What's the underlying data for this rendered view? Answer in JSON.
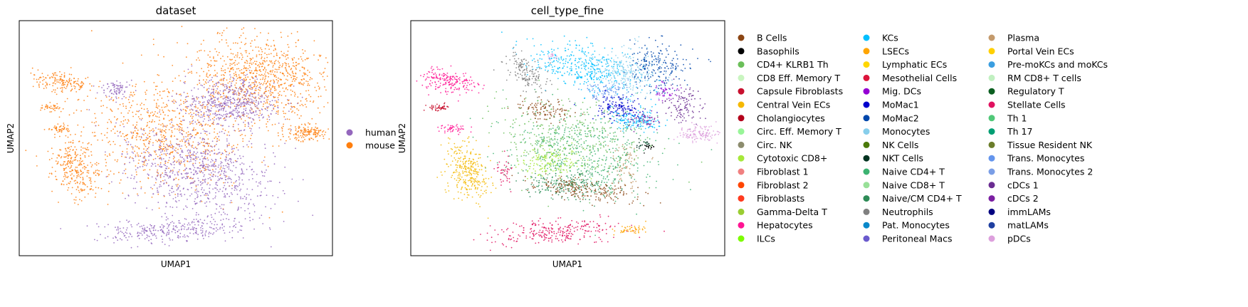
{
  "chart_data": [
    {
      "type": "scatter",
      "title": "dataset",
      "xlabel": "UMAP1",
      "ylabel": "UMAP2",
      "grid": false,
      "legend_position": "right",
      "series": [
        {
          "name": "human",
          "color": "#9467bd"
        },
        {
          "name": "mouse",
          "color": "#ff7f0e"
        }
      ],
      "clusters": [
        {
          "series": "mouse",
          "cx": 0.78,
          "cy": 0.76,
          "rx": 0.22,
          "ry": 0.17,
          "rot": -20,
          "n": 850
        },
        {
          "series": "mouse",
          "cx": 0.48,
          "cy": 0.52,
          "rx": 0.26,
          "ry": 0.22,
          "rot": -25,
          "n": 800
        },
        {
          "series": "mouse",
          "cx": 0.14,
          "cy": 0.74,
          "rx": 0.09,
          "ry": 0.045,
          "rot": -10,
          "n": 160
        },
        {
          "series": "mouse",
          "cx": 0.1,
          "cy": 0.63,
          "rx": 0.04,
          "ry": 0.015,
          "rot": 0,
          "n": 40
        },
        {
          "series": "mouse",
          "cx": 0.13,
          "cy": 0.54,
          "rx": 0.04,
          "ry": 0.02,
          "rot": 0,
          "n": 45
        },
        {
          "series": "mouse",
          "cx": 0.18,
          "cy": 0.38,
          "rx": 0.08,
          "ry": 0.14,
          "rot": 10,
          "n": 300
        },
        {
          "series": "mouse",
          "cx": 0.92,
          "cy": 0.52,
          "rx": 0.07,
          "ry": 0.035,
          "rot": 0,
          "n": 150
        },
        {
          "series": "human",
          "cx": 0.67,
          "cy": 0.65,
          "rx": 0.16,
          "ry": 0.1,
          "rot": -5,
          "n": 550
        },
        {
          "series": "human",
          "cx": 0.57,
          "cy": 0.36,
          "rx": 0.25,
          "ry": 0.17,
          "rot": -25,
          "n": 800
        },
        {
          "series": "human",
          "cx": 0.48,
          "cy": 0.11,
          "rx": 0.24,
          "ry": 0.05,
          "rot": 5,
          "n": 300
        },
        {
          "series": "human",
          "cx": 0.31,
          "cy": 0.71,
          "rx": 0.05,
          "ry": 0.035,
          "rot": 0,
          "n": 80
        }
      ]
    },
    {
      "type": "scatter",
      "title": "cell_type_fine",
      "xlabel": "UMAP1",
      "ylabel": "UMAP2",
      "grid": false,
      "legend_position": "right",
      "series": [
        {
          "name": "B Cells",
          "color": "#8b4513"
        },
        {
          "name": "Basophils",
          "color": "#000000"
        },
        {
          "name": "CD4+ KLRB1 Th",
          "color": "#6bbf59"
        },
        {
          "name": "CD8 Eff. Memory T",
          "color": "#c9f5c0"
        },
        {
          "name": "Capsule Fibroblasts",
          "color": "#c8102e"
        },
        {
          "name": "Central Vein ECs",
          "color": "#f5b800"
        },
        {
          "name": "Cholangiocytes",
          "color": "#b3001b"
        },
        {
          "name": "Circ. Eff. Memory T",
          "color": "#98f598"
        },
        {
          "name": "Circ. NK",
          "color": "#8c8c6e"
        },
        {
          "name": "Cytotoxic CD8+",
          "color": "#a6e83a"
        },
        {
          "name": "Fibroblast 1",
          "color": "#f08080"
        },
        {
          "name": "Fibroblast 2",
          "color": "#ff4500"
        },
        {
          "name": "Fibroblasts",
          "color": "#ff3b1f"
        },
        {
          "name": "Gamma-Delta T",
          "color": "#9acd32"
        },
        {
          "name": "Hepatocytes",
          "color": "#ff1493"
        },
        {
          "name": "ILCs",
          "color": "#7cfc00"
        },
        {
          "name": "KCs",
          "color": "#00bfff"
        },
        {
          "name": "LSECs",
          "color": "#ffa500"
        },
        {
          "name": "Lymphatic ECs",
          "color": "#ffd700"
        },
        {
          "name": "Mesothelial Cells",
          "color": "#dc143c"
        },
        {
          "name": "Mig. DCs",
          "color": "#9400d3"
        },
        {
          "name": "MoMac1",
          "color": "#0000cd"
        },
        {
          "name": "MoMac2",
          "color": "#0047ab"
        },
        {
          "name": "Monocytes",
          "color": "#87ceeb"
        },
        {
          "name": "NK Cells",
          "color": "#4b7a0a"
        },
        {
          "name": "NKT Cells",
          "color": "#013220"
        },
        {
          "name": "Naive CD4+ T",
          "color": "#3cb371"
        },
        {
          "name": "Naive CD8+ T",
          "color": "#98e098"
        },
        {
          "name": "Naive/CM CD4+ T",
          "color": "#2e8b57"
        },
        {
          "name": "Neutrophils",
          "color": "#808080"
        },
        {
          "name": "Pat. Monocytes",
          "color": "#0a88c9"
        },
        {
          "name": "Peritoneal Macs",
          "color": "#6a5acd"
        },
        {
          "name": "Plasma",
          "color": "#c49a6c"
        },
        {
          "name": "Portal Vein ECs",
          "color": "#ffd000"
        },
        {
          "name": "Pre-moKCs and moKCs",
          "color": "#3a9ee0"
        },
        {
          "name": "RM CD8+ T cells",
          "color": "#c1f0c1"
        },
        {
          "name": "Regulatory T",
          "color": "#0b5e20"
        },
        {
          "name": "Stellate Cells",
          "color": "#e0115f"
        },
        {
          "name": "Th 1",
          "color": "#50c878"
        },
        {
          "name": "Th 17",
          "color": "#009e73"
        },
        {
          "name": "Tissue Resident NK",
          "color": "#6b7d2a"
        },
        {
          "name": "Trans. Monocytes",
          "color": "#6495ed"
        },
        {
          "name": "Trans. Monocytes 2",
          "color": "#7a9ee6"
        },
        {
          "name": "cDCs 1",
          "color": "#6a2c91"
        },
        {
          "name": "cDCs 2",
          "color": "#7b1fa2"
        },
        {
          "name": "immLAMs",
          "color": "#000080"
        },
        {
          "name": "matLAMs",
          "color": "#1f3fa0"
        },
        {
          "name": "pDCs",
          "color": "#dda0dd"
        }
      ],
      "clusters": [
        {
          "series": "Naive CD4+ T",
          "cx": 0.55,
          "cy": 0.44,
          "rx": 0.25,
          "ry": 0.18,
          "rot": -20,
          "n": 500
        },
        {
          "series": "CD4+ KLRB1 Th",
          "cx": 0.5,
          "cy": 0.5,
          "rx": 0.23,
          "ry": 0.16,
          "rot": -20,
          "n": 350
        },
        {
          "series": "Cytotoxic CD8+",
          "cx": 0.45,
          "cy": 0.4,
          "rx": 0.1,
          "ry": 0.06,
          "rot": 0,
          "n": 150
        },
        {
          "series": "Naive/CM CD4+ T",
          "cx": 0.5,
          "cy": 0.3,
          "rx": 0.15,
          "ry": 0.06,
          "rot": 0,
          "n": 200
        },
        {
          "series": "B Cells",
          "cx": 0.55,
          "cy": 0.28,
          "rx": 0.18,
          "ry": 0.05,
          "rot": -10,
          "n": 200
        },
        {
          "series": "B Cells",
          "cx": 0.43,
          "cy": 0.62,
          "rx": 0.09,
          "ry": 0.05,
          "rot": -10,
          "n": 110
        },
        {
          "series": "Plasma",
          "cx": 0.68,
          "cy": 0.4,
          "rx": 0.06,
          "ry": 0.12,
          "rot": 0,
          "n": 80
        },
        {
          "series": "KCs",
          "cx": 0.55,
          "cy": 0.8,
          "rx": 0.18,
          "ry": 0.09,
          "rot": -20,
          "n": 400
        },
        {
          "series": "Monocytes",
          "cx": 0.7,
          "cy": 0.78,
          "rx": 0.12,
          "ry": 0.1,
          "rot": -20,
          "n": 250
        },
        {
          "series": "MoMac1",
          "cx": 0.66,
          "cy": 0.63,
          "rx": 0.07,
          "ry": 0.06,
          "rot": 0,
          "n": 150
        },
        {
          "series": "MoMac2",
          "cx": 0.78,
          "cy": 0.8,
          "rx": 0.1,
          "ry": 0.1,
          "rot": -20,
          "n": 200
        },
        {
          "series": "KCs",
          "cx": 0.72,
          "cy": 0.58,
          "rx": 0.08,
          "ry": 0.05,
          "rot": 0,
          "n": 150
        },
        {
          "series": "cDCs 1",
          "cx": 0.87,
          "cy": 0.64,
          "rx": 0.06,
          "ry": 0.08,
          "rot": 0,
          "n": 110
        },
        {
          "series": "cDCs 2",
          "cx": 0.74,
          "cy": 0.57,
          "rx": 0.05,
          "ry": 0.03,
          "rot": 0,
          "n": 60
        },
        {
          "series": "Neutrophils",
          "cx": 0.37,
          "cy": 0.78,
          "rx": 0.05,
          "ry": 0.09,
          "rot": 30,
          "n": 160
        },
        {
          "series": "Trans. Monocytes",
          "cx": 0.62,
          "cy": 0.7,
          "rx": 0.07,
          "ry": 0.04,
          "rot": 0,
          "n": 80
        },
        {
          "series": "Mig. DCs",
          "cx": 0.81,
          "cy": 0.7,
          "rx": 0.04,
          "ry": 0.03,
          "rot": 0,
          "n": 40
        },
        {
          "series": "NKT Cells",
          "cx": 0.74,
          "cy": 0.47,
          "rx": 0.03,
          "ry": 0.02,
          "rot": 0,
          "n": 20
        },
        {
          "series": "Basophils",
          "cx": 0.76,
          "cy": 0.46,
          "rx": 0.02,
          "ry": 0.02,
          "rot": 0,
          "n": 15
        },
        {
          "series": "Hepatocytes",
          "cx": 0.12,
          "cy": 0.74,
          "rx": 0.09,
          "ry": 0.045,
          "rot": -10,
          "n": 200
        },
        {
          "series": "Capsule Fibroblasts",
          "cx": 0.09,
          "cy": 0.63,
          "rx": 0.03,
          "ry": 0.015,
          "rot": 0,
          "n": 50
        },
        {
          "series": "Hepatocytes",
          "cx": 0.13,
          "cy": 0.54,
          "rx": 0.04,
          "ry": 0.02,
          "rot": 0,
          "n": 50
        },
        {
          "series": "Central Vein ECs",
          "cx": 0.18,
          "cy": 0.36,
          "rx": 0.07,
          "ry": 0.13,
          "rot": 10,
          "n": 300
        },
        {
          "series": "Stellate Cells",
          "cx": 0.3,
          "cy": 0.36,
          "rx": 0.03,
          "ry": 0.06,
          "rot": 0,
          "n": 40
        },
        {
          "series": "Stellate Cells",
          "cx": 0.46,
          "cy": 0.1,
          "rx": 0.2,
          "ry": 0.05,
          "rot": 5,
          "n": 260
        },
        {
          "series": "LSECs",
          "cx": 0.71,
          "cy": 0.11,
          "rx": 0.05,
          "ry": 0.02,
          "rot": 0,
          "n": 50
        },
        {
          "series": "pDCs",
          "cx": 0.92,
          "cy": 0.52,
          "rx": 0.07,
          "ry": 0.035,
          "rot": 0,
          "n": 120
        },
        {
          "series": "pDCs",
          "cx": 0.45,
          "cy": 0.85,
          "rx": 0.02,
          "ry": 0.02,
          "rot": 0,
          "n": 15
        }
      ]
    }
  ]
}
